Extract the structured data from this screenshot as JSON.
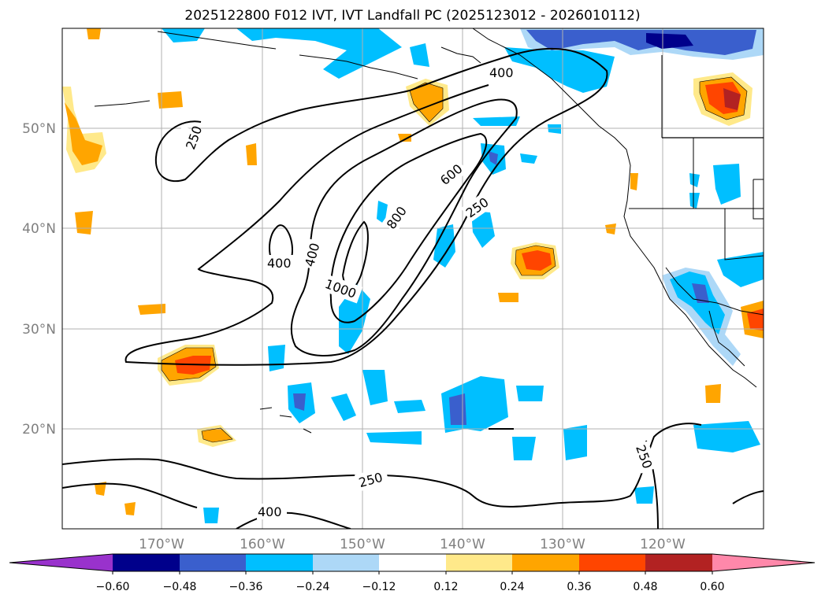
{
  "title": "2025122800 F012 IVT, IVT Landfall PC (2025123012 - 2026010112)",
  "map": {
    "lat_labels": [
      "50°N",
      "40°N",
      "30°N",
      "20°N"
    ],
    "lon_labels": [
      "170°W",
      "160°W",
      "150°W",
      "140°W",
      "130°W",
      "120°W"
    ],
    "label_color": "#808080",
    "ivt_contour_labels": [
      "250",
      "400",
      "600",
      "800",
      "1000",
      "400",
      "400",
      "250",
      "250",
      "250",
      "400"
    ]
  },
  "colorbar": {
    "ticks": [
      "−0.60",
      "−0.48",
      "−0.36",
      "−0.24",
      "−0.12",
      "0.12",
      "0.24",
      "0.36",
      "0.48",
      "0.60"
    ],
    "colors": [
      "#9932cc",
      "#00008b",
      "#3a5fcd",
      "#00bfff",
      "#add8f7",
      "#ffffff",
      "#ffe98a",
      "#ffa500",
      "#ff4500",
      "#b22222",
      "#ff88aa"
    ]
  }
}
